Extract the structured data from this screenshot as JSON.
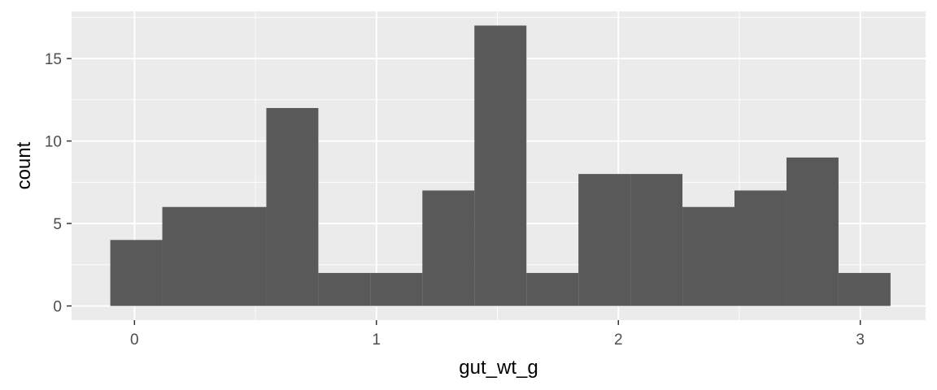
{
  "chart_data": {
    "type": "bar",
    "xlabel": "gut_wt_g",
    "ylabel": "count",
    "x_ticks": [
      0,
      1,
      2,
      3
    ],
    "y_ticks": [
      0,
      5,
      10,
      15
    ],
    "xlim": [
      -0.26,
      3.27
    ],
    "ylim": [
      -0.86,
      17.86
    ],
    "bins": [
      {
        "x0": -0.1,
        "x1": 0.115,
        "count": 4
      },
      {
        "x0": 0.115,
        "x1": 0.33,
        "count": 6
      },
      {
        "x0": 0.33,
        "x1": 0.545,
        "count": 6
      },
      {
        "x0": 0.545,
        "x1": 0.76,
        "count": 12
      },
      {
        "x0": 0.76,
        "x1": 0.975,
        "count": 2
      },
      {
        "x0": 0.975,
        "x1": 1.19,
        "count": 2
      },
      {
        "x0": 1.19,
        "x1": 1.405,
        "count": 7
      },
      {
        "x0": 1.405,
        "x1": 1.62,
        "count": 17
      },
      {
        "x0": 1.62,
        "x1": 1.835,
        "count": 2
      },
      {
        "x0": 1.835,
        "x1": 2.05,
        "count": 8
      },
      {
        "x0": 2.05,
        "x1": 2.265,
        "count": 8
      },
      {
        "x0": 2.265,
        "x1": 2.48,
        "count": 6
      },
      {
        "x0": 2.48,
        "x1": 2.695,
        "count": 7
      },
      {
        "x0": 2.695,
        "x1": 2.91,
        "count": 9
      },
      {
        "x0": 2.91,
        "x1": 3.125,
        "count": 2
      }
    ],
    "grid": true,
    "panel_color": "#ebebeb",
    "grid_color": "#ffffff",
    "bar_color": "#595959"
  }
}
